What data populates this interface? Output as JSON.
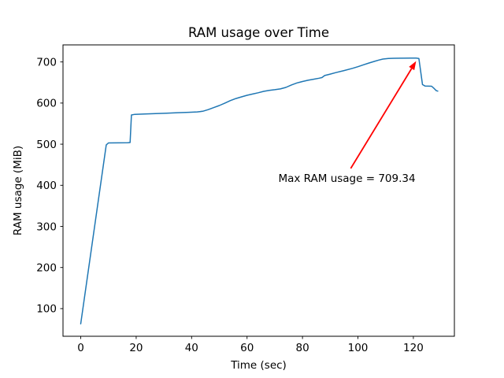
{
  "chart_data": {
    "type": "line",
    "title": "RAM usage over Time",
    "xlabel": "Time (sec)",
    "ylabel": "RAM usage (MiB)",
    "xlim": [
      -6.4,
      134.8
    ],
    "ylim": [
      32.8,
      741.5
    ],
    "xticks": [
      0,
      20,
      40,
      60,
      80,
      100,
      120
    ],
    "yticks": [
      100,
      200,
      300,
      400,
      500,
      600,
      700
    ],
    "grid": false,
    "legend_position": "none",
    "line_color": "#1f77b4",
    "line_width": 1.5,
    "spine_color": "#000000",
    "background_color": "#ffffff",
    "series": [
      {
        "name": "ram_usage",
        "points": [
          [
            0,
            63
          ],
          [
            9.2,
            498
          ],
          [
            10,
            503
          ],
          [
            17,
            503.5
          ],
          [
            17.8,
            504
          ],
          [
            18.3,
            571
          ],
          [
            19.5,
            572.5
          ],
          [
            23,
            573.5
          ],
          [
            27,
            574.5
          ],
          [
            31,
            575.5
          ],
          [
            35,
            576.5
          ],
          [
            39,
            577.5
          ],
          [
            42,
            578.5
          ],
          [
            44,
            580
          ],
          [
            46,
            584
          ],
          [
            48,
            589
          ],
          [
            50,
            594
          ],
          [
            52,
            600
          ],
          [
            54,
            606
          ],
          [
            56,
            611
          ],
          [
            58,
            615
          ],
          [
            60,
            619
          ],
          [
            62,
            622
          ],
          [
            64,
            625
          ],
          [
            66,
            628.5
          ],
          [
            68,
            631
          ],
          [
            70,
            632.5
          ],
          [
            72,
            634.5
          ],
          [
            74,
            638
          ],
          [
            76,
            644
          ],
          [
            78,
            649
          ],
          [
            80,
            652.5
          ],
          [
            82,
            655.5
          ],
          [
            84,
            658
          ],
          [
            86,
            660.5
          ],
          [
            87,
            662
          ],
          [
            88,
            667
          ],
          [
            90,
            670.5
          ],
          [
            92,
            674
          ],
          [
            95,
            679
          ],
          [
            98,
            684.5
          ],
          [
            100,
            688.5
          ],
          [
            102,
            693
          ],
          [
            104,
            697.5
          ],
          [
            106,
            701.5
          ],
          [
            107.5,
            704.5
          ],
          [
            109,
            707
          ],
          [
            111,
            708.5
          ],
          [
            113,
            709
          ],
          [
            116,
            709.2
          ],
          [
            119,
            709.3
          ],
          [
            121,
            709.34
          ],
          [
            122,
            708.5
          ],
          [
            123.3,
            645
          ],
          [
            124.2,
            641.5
          ],
          [
            126.6,
            641
          ],
          [
            127.4,
            636
          ],
          [
            128.3,
            630
          ],
          [
            128.8,
            629
          ]
        ]
      }
    ],
    "annotation": {
      "text": "Max RAM usage = 709.34",
      "color": "#ff0000",
      "max_value": 709.34,
      "text_xy": [
        71.3,
        408
      ],
      "arrow_from": [
        97.4,
        441
      ],
      "arrow_to": [
        121,
        702
      ]
    }
  }
}
